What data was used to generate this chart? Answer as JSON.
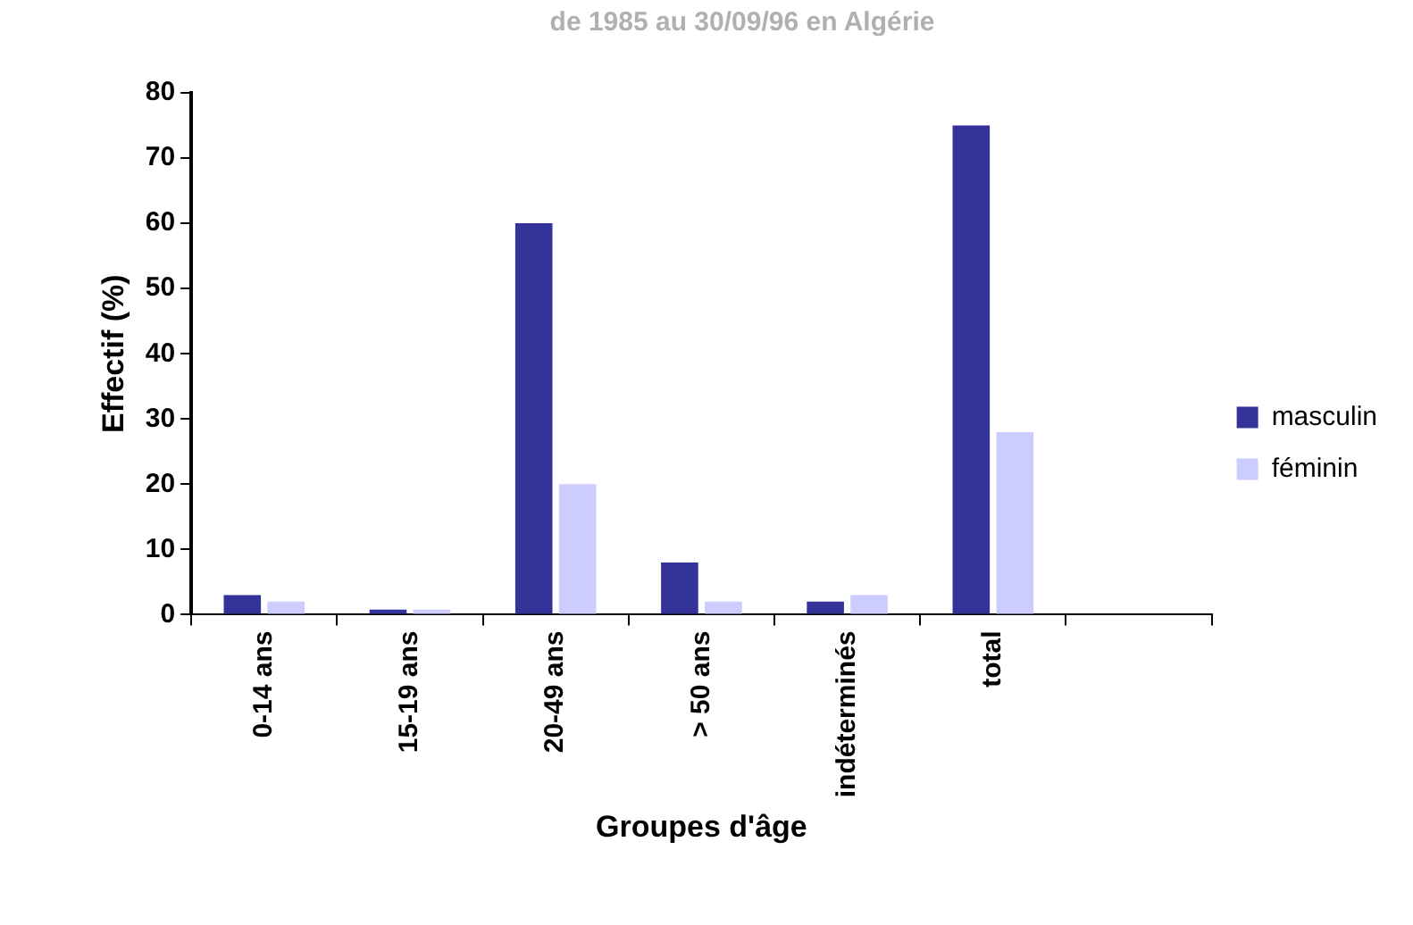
{
  "chart_data": {
    "type": "bar",
    "title": "de 1985 au 30/09/96 en Algérie",
    "xlabel": "Groupes d'âge",
    "ylabel": "Effectif (%)",
    "categories": [
      "0-14 ans",
      "15-19 ans",
      "20-49 ans",
      "> 50 ans",
      "indéterminés",
      "total",
      null
    ],
    "series": [
      {
        "name": "masculin",
        "color": "#333399",
        "values": [
          3,
          0.8,
          60,
          8,
          2,
          75,
          null
        ]
      },
      {
        "name": "féminin",
        "color": "#ccccff",
        "values": [
          2,
          0.8,
          20,
          2,
          3,
          28,
          null
        ]
      }
    ],
    "ylim": [
      0,
      80
    ],
    "yticks": [
      0,
      10,
      20,
      30,
      40,
      50,
      60,
      70,
      80
    ],
    "grid": false,
    "legend": "right"
  }
}
